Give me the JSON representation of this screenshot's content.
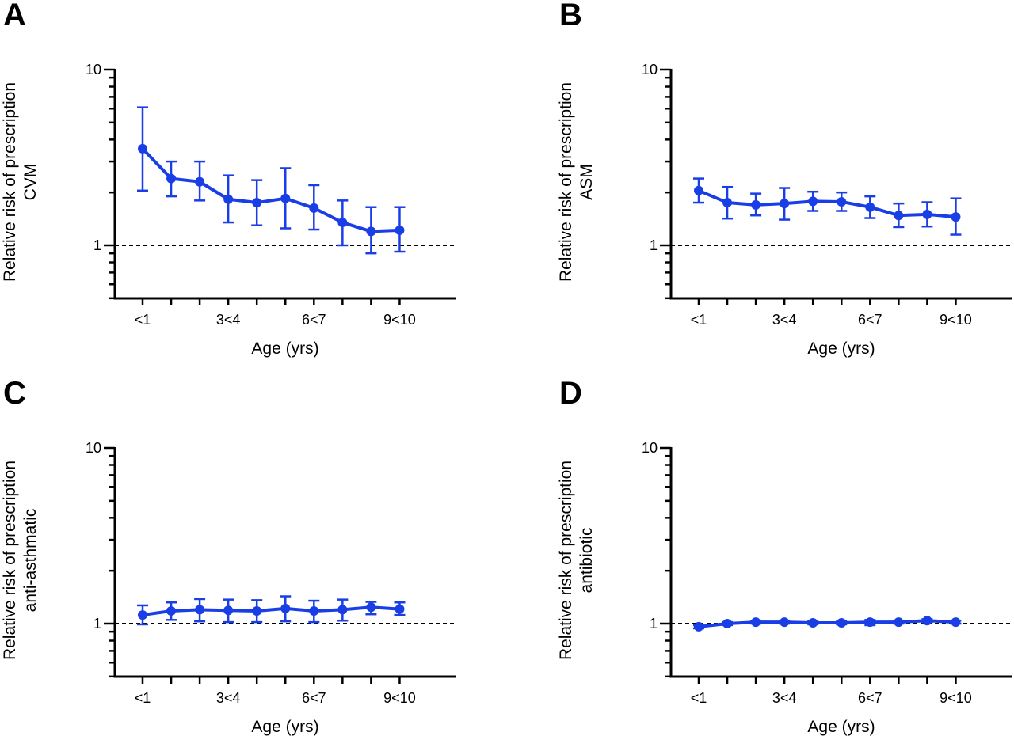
{
  "chart_data": [
    {
      "panel": "A",
      "type": "line",
      "xlabel": "Age (yrs)",
      "ylabel": [
        "Relative risk of prescription",
        "CVM"
      ],
      "yscale": "log",
      "ylim": [
        0.5,
        10
      ],
      "yticks": [
        1,
        10
      ],
      "ytick_labels": [
        "1",
        "10"
      ],
      "xtick_labels": [
        "<1",
        "3<4",
        "6<7",
        "9<10"
      ],
      "xtick_positions": [
        0,
        3,
        6,
        9
      ],
      "x": [
        0,
        1,
        2,
        3,
        4,
        5,
        6,
        7,
        8,
        9
      ],
      "reference_line": 1,
      "color": "#1a3ee6",
      "series": [
        {
          "values": [
            3.55,
            2.4,
            2.3,
            1.83,
            1.75,
            1.85,
            1.63,
            1.35,
            1.2,
            1.22
          ],
          "lower": [
            2.05,
            1.9,
            1.8,
            1.35,
            1.3,
            1.25,
            1.23,
            1.0,
            0.9,
            0.92
          ],
          "upper": [
            6.1,
            3.0,
            3.0,
            2.5,
            2.35,
            2.75,
            2.2,
            1.8,
            1.65,
            1.65
          ]
        }
      ]
    },
    {
      "panel": "B",
      "type": "line",
      "xlabel": "Age (yrs)",
      "ylabel": [
        "Relative risk of prescription",
        "ASM"
      ],
      "yscale": "log",
      "ylim": [
        0.5,
        10
      ],
      "yticks": [
        1,
        10
      ],
      "ytick_labels": [
        "1",
        "10"
      ],
      "xtick_labels": [
        "<1",
        "3<4",
        "6<7",
        "9<10"
      ],
      "xtick_positions": [
        0,
        3,
        6,
        9
      ],
      "x": [
        0,
        1,
        2,
        3,
        4,
        5,
        6,
        7,
        8,
        9
      ],
      "reference_line": 1,
      "color": "#1a3ee6",
      "series": [
        {
          "values": [
            2.05,
            1.75,
            1.7,
            1.73,
            1.78,
            1.77,
            1.65,
            1.48,
            1.5,
            1.45
          ],
          "lower": [
            1.75,
            1.42,
            1.48,
            1.4,
            1.57,
            1.57,
            1.43,
            1.27,
            1.28,
            1.15
          ],
          "upper": [
            2.4,
            2.15,
            1.97,
            2.12,
            2.02,
            2.0,
            1.9,
            1.73,
            1.76,
            1.85
          ]
        }
      ]
    },
    {
      "panel": "C",
      "type": "line",
      "xlabel": "Age (yrs)",
      "ylabel": [
        "Relative risk of prescription",
        "anti-asthmatic"
      ],
      "yscale": "log",
      "ylim": [
        0.5,
        10
      ],
      "yticks": [
        1,
        10
      ],
      "ytick_labels": [
        "1",
        "10"
      ],
      "xtick_labels": [
        "<1",
        "3<4",
        "6<7",
        "9<10"
      ],
      "xtick_positions": [
        0,
        3,
        6,
        9
      ],
      "x": [
        0,
        1,
        2,
        3,
        4,
        5,
        6,
        7,
        8,
        9
      ],
      "reference_line": 1,
      "color": "#1a3ee6",
      "series": [
        {
          "values": [
            1.12,
            1.18,
            1.2,
            1.19,
            1.18,
            1.22,
            1.18,
            1.2,
            1.24,
            1.21
          ],
          "lower": [
            0.99,
            1.05,
            1.03,
            1.02,
            1.02,
            1.03,
            1.02,
            1.04,
            1.13,
            1.12
          ],
          "upper": [
            1.27,
            1.32,
            1.38,
            1.37,
            1.36,
            1.43,
            1.35,
            1.37,
            1.33,
            1.32
          ]
        }
      ]
    },
    {
      "panel": "D",
      "type": "line",
      "xlabel": "Age (yrs)",
      "ylabel": [
        "Relative risk of prescription",
        "antibiotic"
      ],
      "yscale": "log",
      "ylim": [
        0.5,
        10
      ],
      "yticks": [
        1,
        10
      ],
      "ytick_labels": [
        "1",
        "10"
      ],
      "xtick_labels": [
        "<1",
        "3<4",
        "6<7",
        "9<10"
      ],
      "xtick_positions": [
        0,
        3,
        6,
        9
      ],
      "x": [
        0,
        1,
        2,
        3,
        4,
        5,
        6,
        7,
        8,
        9
      ],
      "reference_line": 1,
      "color": "#1a3ee6",
      "series": [
        {
          "values": [
            0.96,
            1.0,
            1.02,
            1.02,
            1.01,
            1.01,
            1.02,
            1.02,
            1.04,
            1.02
          ],
          "lower": [
            0.94,
            0.98,
            1.0,
            1.0,
            0.99,
            0.99,
            0.98,
            1.0,
            1.02,
            1.0
          ],
          "upper": [
            0.98,
            1.02,
            1.04,
            1.04,
            1.03,
            1.03,
            1.05,
            1.04,
            1.06,
            1.04
          ]
        }
      ]
    }
  ]
}
